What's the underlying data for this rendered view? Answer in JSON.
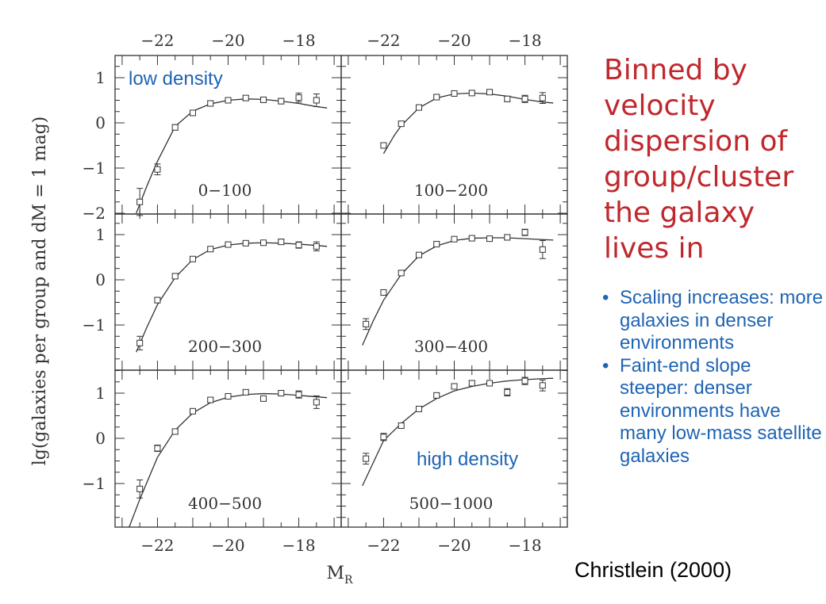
{
  "chart_data": {
    "type": "scatter",
    "xlabel": "M",
    "xlabel_sub": "R",
    "ylabel": "lg(galaxies per group and dM = 1 mag)",
    "xlim": [
      -23.2,
      -16.8
    ],
    "x_ticks": [
      -22,
      -20,
      -18
    ],
    "x_tick_labels": [
      "−22",
      "−20",
      "−18"
    ],
    "grid": false,
    "panels": [
      {
        "label": "0−100",
        "annotation": "low density",
        "ylim": [
          -2,
          1.5
        ],
        "y_ticks": [
          1,
          0,
          -1,
          -2
        ],
        "y_tick_labels": [
          "1",
          "0",
          "−1",
          "−2"
        ],
        "points": [
          {
            "x": -22.5,
            "y": -1.75,
            "err": 0.3
          },
          {
            "x": -22.0,
            "y": -1.03,
            "err": 0.12
          },
          {
            "x": -21.5,
            "y": -0.1,
            "err": 0.06
          },
          {
            "x": -21.0,
            "y": 0.22,
            "err": 0.05
          },
          {
            "x": -20.5,
            "y": 0.43,
            "err": 0.05
          },
          {
            "x": -20.0,
            "y": 0.5,
            "err": 0.05
          },
          {
            "x": -19.5,
            "y": 0.55,
            "err": 0.05
          },
          {
            "x": -19.0,
            "y": 0.51,
            "err": 0.06
          },
          {
            "x": -18.5,
            "y": 0.48,
            "err": 0.06
          },
          {
            "x": -18.0,
            "y": 0.56,
            "err": 0.1
          },
          {
            "x": -17.5,
            "y": 0.5,
            "err": 0.14
          }
        ],
        "fit": [
          [
            -22.6,
            -2.0
          ],
          [
            -22.3,
            -1.4
          ],
          [
            -22.0,
            -0.85
          ],
          [
            -21.5,
            -0.08
          ],
          [
            -21.0,
            0.26
          ],
          [
            -20.5,
            0.42
          ],
          [
            -20.0,
            0.5
          ],
          [
            -19.5,
            0.53
          ],
          [
            -19.0,
            0.52
          ],
          [
            -18.5,
            0.48
          ],
          [
            -18.0,
            0.43
          ],
          [
            -17.5,
            0.36
          ],
          [
            -17.2,
            0.33
          ]
        ]
      },
      {
        "label": "100−200",
        "annotation": "",
        "ylim": [
          -2,
          1.5
        ],
        "y_ticks": [
          1,
          0,
          -1,
          -2
        ],
        "y_tick_labels": [
          "1",
          "0",
          "−1",
          "−2"
        ],
        "points": [
          {
            "x": -22.0,
            "y": -0.5,
            "err": 0.06
          },
          {
            "x": -21.5,
            "y": -0.02,
            "err": 0.05
          },
          {
            "x": -21.0,
            "y": 0.34,
            "err": 0.04
          },
          {
            "x": -20.5,
            "y": 0.57,
            "err": 0.04
          },
          {
            "x": -20.0,
            "y": 0.65,
            "err": 0.04
          },
          {
            "x": -19.5,
            "y": 0.66,
            "err": 0.04
          },
          {
            "x": -19.0,
            "y": 0.68,
            "err": 0.05
          },
          {
            "x": -18.5,
            "y": 0.53,
            "err": 0.06
          },
          {
            "x": -18.0,
            "y": 0.53,
            "err": 0.08
          },
          {
            "x": -17.5,
            "y": 0.55,
            "err": 0.12
          }
        ],
        "fit": [
          [
            -22.0,
            -0.68
          ],
          [
            -21.7,
            -0.28
          ],
          [
            -21.5,
            -0.06
          ],
          [
            -21.0,
            0.33
          ],
          [
            -20.5,
            0.55
          ],
          [
            -20.0,
            0.64
          ],
          [
            -19.5,
            0.66
          ],
          [
            -19.0,
            0.64
          ],
          [
            -18.5,
            0.59
          ],
          [
            -18.0,
            0.52
          ],
          [
            -17.5,
            0.46
          ],
          [
            -17.2,
            0.44
          ]
        ]
      },
      {
        "label": "200−300",
        "annotation": "",
        "ylim": [
          -2,
          1.5
        ],
        "y_ticks": [
          1,
          0,
          -1
        ],
        "y_tick_labels": [
          "1",
          "0",
          "−1"
        ],
        "points": [
          {
            "x": -22.5,
            "y": -1.4,
            "err": 0.15
          },
          {
            "x": -22.0,
            "y": -0.45,
            "err": 0.06
          },
          {
            "x": -21.5,
            "y": 0.08,
            "err": 0.05
          },
          {
            "x": -21.0,
            "y": 0.46,
            "err": 0.04
          },
          {
            "x": -20.5,
            "y": 0.68,
            "err": 0.04
          },
          {
            "x": -20.0,
            "y": 0.78,
            "err": 0.04
          },
          {
            "x": -19.5,
            "y": 0.81,
            "err": 0.04
          },
          {
            "x": -19.0,
            "y": 0.82,
            "err": 0.05
          },
          {
            "x": -18.5,
            "y": 0.84,
            "err": 0.06
          },
          {
            "x": -18.0,
            "y": 0.77,
            "err": 0.07
          },
          {
            "x": -17.5,
            "y": 0.74,
            "err": 0.1
          }
        ],
        "fit": [
          [
            -22.6,
            -1.6
          ],
          [
            -22.3,
            -1.05
          ],
          [
            -22.0,
            -0.55
          ],
          [
            -21.5,
            0.05
          ],
          [
            -21.0,
            0.45
          ],
          [
            -20.5,
            0.67
          ],
          [
            -20.0,
            0.77
          ],
          [
            -19.5,
            0.81
          ],
          [
            -19.0,
            0.82
          ],
          [
            -18.5,
            0.81
          ],
          [
            -18.0,
            0.79
          ],
          [
            -17.5,
            0.76
          ],
          [
            -17.2,
            0.74
          ]
        ]
      },
      {
        "label": "300−400",
        "annotation": "",
        "ylim": [
          -2,
          1.5
        ],
        "y_ticks": [
          1,
          0,
          -1
        ],
        "y_tick_labels": [
          "1",
          "0",
          "−1"
        ],
        "points": [
          {
            "x": -22.5,
            "y": -0.98,
            "err": 0.12
          },
          {
            "x": -22.0,
            "y": -0.28,
            "err": 0.06
          },
          {
            "x": -21.5,
            "y": 0.15,
            "err": 0.05
          },
          {
            "x": -21.0,
            "y": 0.55,
            "err": 0.04
          },
          {
            "x": -20.5,
            "y": 0.79,
            "err": 0.04
          },
          {
            "x": -20.0,
            "y": 0.9,
            "err": 0.04
          },
          {
            "x": -19.5,
            "y": 0.92,
            "err": 0.04
          },
          {
            "x": -19.0,
            "y": 0.91,
            "err": 0.05
          },
          {
            "x": -18.5,
            "y": 0.94,
            "err": 0.06
          },
          {
            "x": -18.0,
            "y": 1.05,
            "err": 0.07
          },
          {
            "x": -17.5,
            "y": 0.67,
            "err": 0.2
          }
        ],
        "fit": [
          [
            -22.6,
            -1.45
          ],
          [
            -22.3,
            -0.92
          ],
          [
            -22.0,
            -0.45
          ],
          [
            -21.5,
            0.12
          ],
          [
            -21.0,
            0.53
          ],
          [
            -20.5,
            0.75
          ],
          [
            -20.0,
            0.87
          ],
          [
            -19.5,
            0.92
          ],
          [
            -19.0,
            0.93
          ],
          [
            -18.5,
            0.93
          ],
          [
            -18.0,
            0.91
          ],
          [
            -17.5,
            0.89
          ],
          [
            -17.2,
            0.88
          ]
        ]
      },
      {
        "label": "400−500",
        "annotation": "",
        "ylim": [
          -2,
          1.5
        ],
        "y_ticks": [
          1,
          0,
          -1
        ],
        "y_tick_labels": [
          "1",
          "0",
          "−1"
        ],
        "points": [
          {
            "x": -22.5,
            "y": -1.12,
            "err": 0.2
          },
          {
            "x": -22.0,
            "y": -0.22,
            "err": 0.07
          },
          {
            "x": -21.5,
            "y": 0.15,
            "err": 0.05
          },
          {
            "x": -21.0,
            "y": 0.6,
            "err": 0.04
          },
          {
            "x": -20.5,
            "y": 0.85,
            "err": 0.04
          },
          {
            "x": -20.0,
            "y": 0.93,
            "err": 0.04
          },
          {
            "x": -19.5,
            "y": 1.02,
            "err": 0.05
          },
          {
            "x": -19.0,
            "y": 0.88,
            "err": 0.05
          },
          {
            "x": -18.5,
            "y": 1.0,
            "err": 0.06
          },
          {
            "x": -18.0,
            "y": 0.97,
            "err": 0.08
          },
          {
            "x": -17.5,
            "y": 0.8,
            "err": 0.14
          }
        ],
        "fit": [
          [
            -22.8,
            -2.0
          ],
          [
            -22.5,
            -1.35
          ],
          [
            -22.0,
            -0.42
          ],
          [
            -21.5,
            0.18
          ],
          [
            -21.0,
            0.56
          ],
          [
            -20.5,
            0.79
          ],
          [
            -20.0,
            0.91
          ],
          [
            -19.5,
            0.97
          ],
          [
            -19.0,
            0.99
          ],
          [
            -18.5,
            0.98
          ],
          [
            -18.0,
            0.95
          ],
          [
            -17.5,
            0.92
          ],
          [
            -17.2,
            0.9
          ]
        ]
      },
      {
        "label": "500−1000",
        "annotation": "high density",
        "ylim": [
          -2,
          1.5
        ],
        "y_ticks": [
          1,
          0,
          -1
        ],
        "y_tick_labels": [
          "1",
          "0",
          "−1"
        ],
        "points": [
          {
            "x": -22.5,
            "y": -0.45,
            "err": 0.12
          },
          {
            "x": -22.0,
            "y": 0.03,
            "err": 0.08
          },
          {
            "x": -21.5,
            "y": 0.28,
            "err": 0.06
          },
          {
            "x": -21.0,
            "y": 0.65,
            "err": 0.05
          },
          {
            "x": -20.5,
            "y": 0.95,
            "err": 0.05
          },
          {
            "x": -20.0,
            "y": 1.15,
            "err": 0.05
          },
          {
            "x": -19.5,
            "y": 1.22,
            "err": 0.05
          },
          {
            "x": -19.0,
            "y": 1.22,
            "err": 0.06
          },
          {
            "x": -18.5,
            "y": 1.02,
            "err": 0.08
          },
          {
            "x": -18.0,
            "y": 1.27,
            "err": 0.08
          },
          {
            "x": -17.5,
            "y": 1.17,
            "err": 0.12
          }
        ],
        "fit": [
          [
            -22.6,
            -1.05
          ],
          [
            -22.3,
            -0.55
          ],
          [
            -22.0,
            -0.05
          ],
          [
            -21.5,
            0.33
          ],
          [
            -21.0,
            0.65
          ],
          [
            -20.5,
            0.88
          ],
          [
            -20.0,
            1.05
          ],
          [
            -19.5,
            1.15
          ],
          [
            -19.0,
            1.22
          ],
          [
            -18.5,
            1.27
          ],
          [
            -18.0,
            1.3
          ],
          [
            -17.5,
            1.32
          ],
          [
            -17.2,
            1.33
          ]
        ]
      }
    ]
  },
  "title": "Binned by velocity dispersion of group/cluster the galaxy lives in",
  "title_lines": [
    "Binned by",
    "velocity",
    "dispersion of",
    "group/cluster",
    "the galaxy",
    "lives in"
  ],
  "bullets": [
    "Scaling increases: more galaxies in denser environments",
    "Faint-end slope steeper: denser environments have many low-mass satellite galaxies"
  ],
  "citation": "Christlein (2000)",
  "colors": {
    "title": "#c0282d",
    "annotation": "#1f64b4",
    "bullets": "#1f64b4",
    "axes": "#333333"
  }
}
